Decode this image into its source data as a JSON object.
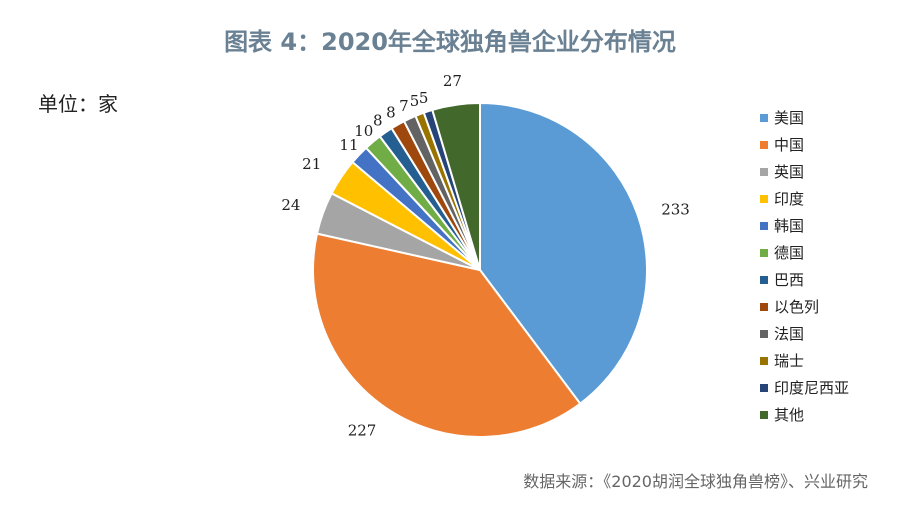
{
  "title": "图表 4：2020年全球独角兽企业分布情况",
  "unit_label": "单位：家",
  "source": "数据来源：《2020胡润全球独角兽榜》、兴业研究",
  "chart_data": {
    "type": "pie",
    "categories": [
      "美国",
      "中国",
      "英国",
      "印度",
      "韩国",
      "德国",
      "巴西",
      "以色列",
      "法国",
      "瑞士",
      "印度尼西亚",
      "其他"
    ],
    "values": [
      233,
      227,
      24,
      21,
      11,
      10,
      8,
      8,
      7,
      5,
      5,
      27
    ],
    "data_labels": [
      "233",
      "227",
      "24",
      "21",
      "11",
      "10",
      "8",
      "8",
      "7",
      "5",
      "5",
      "27"
    ],
    "colors": [
      "#5b9bd5",
      "#ed7d31",
      "#a5a5a5",
      "#ffc000",
      "#4472c4",
      "#70ad47",
      "#255e91",
      "#9e480e",
      "#636363",
      "#997300",
      "#264478",
      "#43682b"
    ],
    "legend_position": "right"
  }
}
